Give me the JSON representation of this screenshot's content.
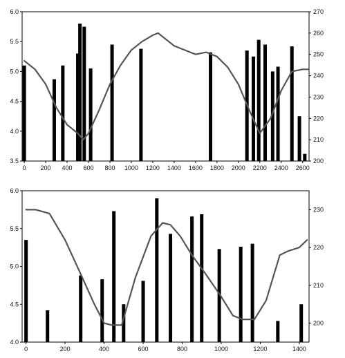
{
  "chart_data": [
    {
      "type": "bar+line",
      "title": "",
      "xlabel": "",
      "ylabel_left": "",
      "ylabel_right": "",
      "xlim": [
        -20,
        2660
      ],
      "ylim_left": [
        3.5,
        6.0
      ],
      "ylim_right": [
        200,
        270
      ],
      "xticks": [
        0,
        200,
        400,
        600,
        800,
        1000,
        1200,
        1400,
        1600,
        1800,
        2000,
        2200,
        2400,
        2600
      ],
      "yticks_left": [
        3.5,
        4.0,
        4.5,
        5.0,
        5.5,
        6.0
      ],
      "yticks_right": [
        200,
        210,
        220,
        230,
        240,
        250,
        260,
        270
      ],
      "grid": false,
      "legend": "none",
      "bar_color": "#000000",
      "line_color": "#555555",
      "bars": [
        {
          "x": 0,
          "value": 5.1
        },
        {
          "x": 280,
          "value": 4.87
        },
        {
          "x": 360,
          "value": 5.1
        },
        {
          "x": 500,
          "value": 5.3
        },
        {
          "x": 520,
          "value": 5.8
        },
        {
          "x": 560,
          "value": 5.75
        },
        {
          "x": 620,
          "value": 5.05
        },
        {
          "x": 820,
          "value": 5.45
        },
        {
          "x": 1090,
          "value": 5.38
        },
        {
          "x": 1740,
          "value": 5.32
        },
        {
          "x": 2080,
          "value": 5.35
        },
        {
          "x": 2140,
          "value": 5.25
        },
        {
          "x": 2190,
          "value": 5.53
        },
        {
          "x": 2250,
          "value": 5.45
        },
        {
          "x": 2320,
          "value": 5.0
        },
        {
          "x": 2370,
          "value": 5.08
        },
        {
          "x": 2500,
          "value": 5.42
        },
        {
          "x": 2570,
          "value": 4.25
        },
        {
          "x": 2620,
          "value": 3.62
        }
      ],
      "line": {
        "x": [
          0,
          100,
          200,
          300,
          400,
          500,
          550,
          600,
          700,
          800,
          900,
          1000,
          1100,
          1200,
          1250,
          1300,
          1400,
          1500,
          1600,
          1700,
          1800,
          1900,
          2000,
          2100,
          2200,
          2300,
          2400,
          2500,
          2600,
          2650
        ],
        "y": [
          247,
          243,
          236,
          225,
          217,
          213,
          210,
          213,
          224,
          236,
          245,
          252,
          256,
          259,
          260,
          258,
          254,
          252,
          250,
          251,
          249,
          244,
          236,
          224,
          213,
          220,
          233,
          242,
          243,
          243
        ]
      }
    },
    {
      "type": "bar+line",
      "title": "",
      "xlabel": "",
      "ylabel_left": "",
      "ylabel_right": "",
      "xlim": [
        -20,
        1450
      ],
      "ylim_left": [
        4.0,
        6.0
      ],
      "ylim_right": [
        195,
        235
      ],
      "xticks": [
        0,
        200,
        400,
        600,
        800,
        1000,
        1200,
        1400
      ],
      "yticks_left": [
        4.0,
        4.5,
        5.0,
        5.5,
        6.0
      ],
      "yticks_right": [
        200,
        210,
        220,
        230
      ],
      "grid": false,
      "legend": "none",
      "bar_color": "#000000",
      "line_color": "#555555",
      "bars": [
        {
          "x": 0,
          "value": 5.35
        },
        {
          "x": 110,
          "value": 4.42
        },
        {
          "x": 280,
          "value": 4.88
        },
        {
          "x": 390,
          "value": 4.83
        },
        {
          "x": 450,
          "value": 5.73
        },
        {
          "x": 500,
          "value": 4.5
        },
        {
          "x": 600,
          "value": 4.81
        },
        {
          "x": 670,
          "value": 5.9
        },
        {
          "x": 740,
          "value": 5.43
        },
        {
          "x": 850,
          "value": 5.66
        },
        {
          "x": 900,
          "value": 5.69
        },
        {
          "x": 990,
          "value": 5.23
        },
        {
          "x": 1100,
          "value": 5.26
        },
        {
          "x": 1160,
          "value": 5.3
        },
        {
          "x": 1290,
          "value": 4.28
        },
        {
          "x": 1410,
          "value": 4.5
        }
      ],
      "line": {
        "x": [
          0,
          50,
          120,
          200,
          280,
          350,
          400,
          440,
          490,
          560,
          640,
          700,
          740,
          790,
          850,
          920,
          1000,
          1060,
          1110,
          1170,
          1230,
          1300,
          1340,
          1400,
          1440
        ],
        "y": [
          230,
          230,
          229,
          222,
          213,
          205,
          200,
          199.5,
          199.5,
          212,
          223,
          226.5,
          226,
          223,
          218,
          213,
          207,
          202,
          201,
          201,
          206,
          218,
          219,
          220,
          222
        ]
      }
    }
  ]
}
